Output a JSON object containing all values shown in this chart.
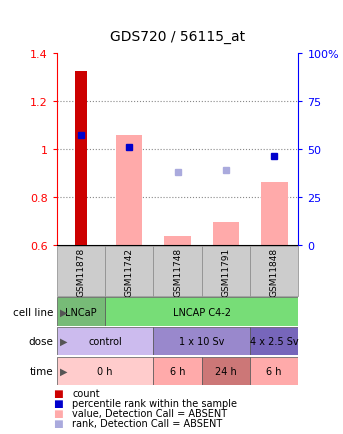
{
  "title": "GDS720 / 56115_at",
  "samples": [
    "GSM11878",
    "GSM11742",
    "GSM11748",
    "GSM11791",
    "GSM11848"
  ],
  "ylim": [
    0.6,
    1.4
  ],
  "yticks": [
    0.6,
    0.8,
    1.0,
    1.2,
    1.4
  ],
  "y2ticks_pct": [
    0,
    25,
    50,
    75,
    100
  ],
  "y2ticklabels": [
    "0",
    "25",
    "50",
    "75",
    "100%"
  ],
  "bar_values": [
    1.325,
    null,
    null,
    null,
    null
  ],
  "bar_color": "#cc0000",
  "rank_values": [
    1.06,
    1.01,
    null,
    null,
    0.97
  ],
  "rank_color": "#0000cc",
  "absent_bar_values": [
    null,
    1.06,
    0.635,
    0.695,
    0.862
  ],
  "absent_bar_color": "#ffaaaa",
  "absent_rank_values": [
    null,
    null,
    0.905,
    0.912,
    null
  ],
  "absent_rank_color": "#aaaadd",
  "bar_width": 0.55,
  "red_bar_width": 0.25,
  "grid_lines": [
    0.8,
    1.0,
    1.2
  ],
  "grid_color": "#888888",
  "cell_line_groups": [
    {
      "label": "LNCaP",
      "start": 0,
      "end": 1,
      "color": "#66cc66"
    },
    {
      "label": "LNCAP C4-2",
      "start": 1,
      "end": 5,
      "color": "#66cc66"
    }
  ],
  "dose_groups": [
    {
      "label": "control",
      "start": 0,
      "end": 2,
      "color": "#ccbbee"
    },
    {
      "label": "1 x 10 Sv",
      "start": 2,
      "end": 4,
      "color": "#9988cc"
    },
    {
      "label": "4 x 2.5 Sv",
      "start": 4,
      "end": 5,
      "color": "#7766bb"
    }
  ],
  "time_groups": [
    {
      "label": "0 h",
      "start": 0,
      "end": 2,
      "color": "#ffcccc"
    },
    {
      "label": "6 h",
      "start": 2,
      "end": 3,
      "color": "#ffaaaa"
    },
    {
      "label": "24 h",
      "start": 3,
      "end": 4,
      "color": "#cc7777"
    },
    {
      "label": "6 h",
      "start": 4,
      "end": 5,
      "color": "#ffaaaa"
    }
  ],
  "row_labels": [
    "cell line",
    "dose",
    "time"
  ],
  "legend_items": [
    {
      "color": "#cc0000",
      "label": "count"
    },
    {
      "color": "#0000cc",
      "label": "percentile rank within the sample"
    },
    {
      "color": "#ffaaaa",
      "label": "value, Detection Call = ABSENT"
    },
    {
      "color": "#aaaadd",
      "label": "rank, Detection Call = ABSENT"
    }
  ],
  "sample_bg": "#cccccc",
  "sample_edge": "#888888",
  "spine_color": "#000000"
}
